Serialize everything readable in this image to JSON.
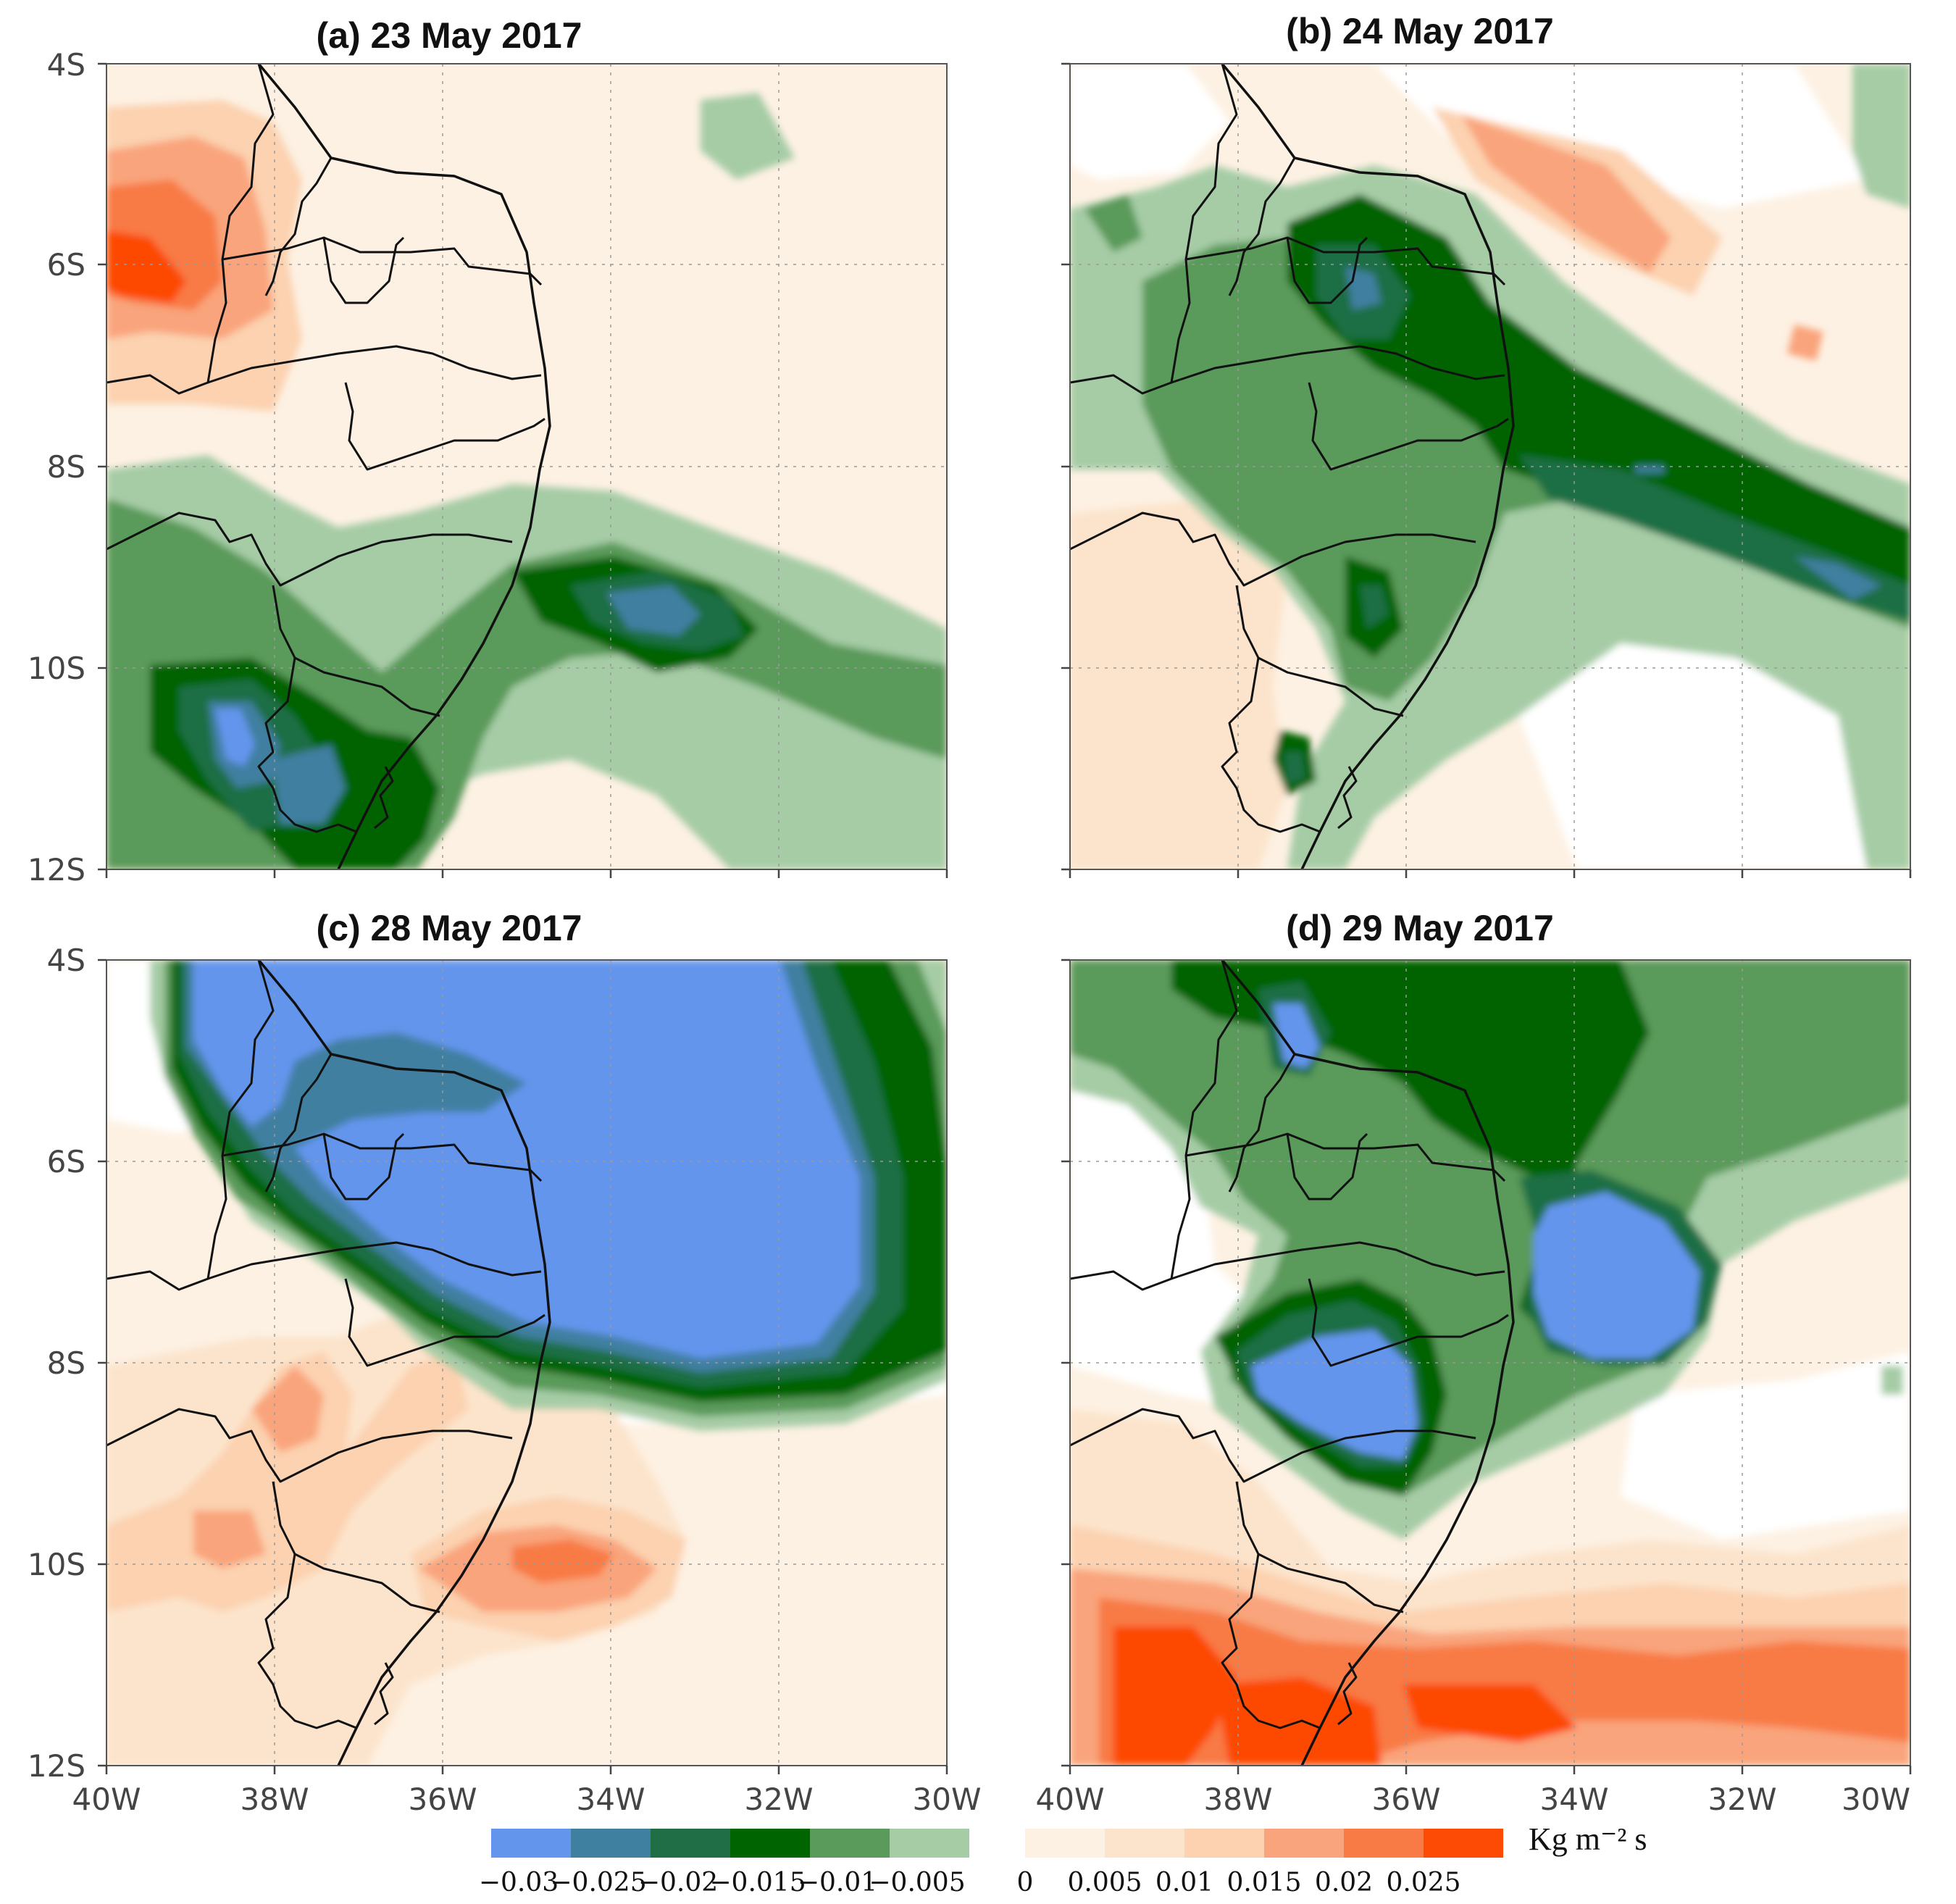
{
  "figure": {
    "panels": [
      {
        "title": "(a) 23 May 2017",
        "date": "23 May 2017"
      },
      {
        "title": "(b) 24 May 2017",
        "date": "24 May 2017"
      },
      {
        "title": "(c) 28 May 2017",
        "date": "28 May 2017"
      },
      {
        "title": "(d) 29 May 2017",
        "date": "29 May 2017"
      }
    ],
    "lat_ticks": [
      "4S",
      "6S",
      "8S",
      "10S",
      "12S"
    ],
    "lon_ticks": [
      "40W",
      "38W",
      "36W",
      "34W",
      "32W",
      "30W"
    ],
    "colorbar": {
      "unit": "Kg m⁻² s",
      "labels": [
        "−0.03",
        "−0.025",
        "−0.02",
        "−0.015",
        "−0.01",
        "−0.005",
        "0",
        "0.005",
        "0.01",
        "0.015",
        "0.02",
        "0.025"
      ],
      "colors": [
        "#6495ed",
        "#3f7fa0",
        "#1f6e45",
        "#006400",
        "#5a9a5a",
        "#a6cca6",
        "#fdf1e3",
        "#fce4cc",
        "#fcd2b0",
        "#f9a47c",
        "#f87a45",
        "#fd4a05"
      ]
    }
  },
  "chart_data": {
    "type": "heatmap",
    "variable": "Kg m⁻² s",
    "region": {
      "lon": [
        -40,
        -30
      ],
      "lat": [
        -12,
        -4
      ]
    },
    "levels": [
      -0.03,
      -0.025,
      -0.02,
      -0.015,
      -0.01,
      -0.005,
      0,
      0.005,
      0.01,
      0.015,
      0.02,
      0.025
    ],
    "panels": [
      {
        "date": "23 May 2017",
        "features": [
          {
            "lon": -39.5,
            "lat": -6.4,
            "value": 0.025
          },
          {
            "lon": -39.0,
            "lat": -6.0,
            "value": 0.02
          },
          {
            "lon": -38.5,
            "lat": -6.8,
            "value": 0.01
          },
          {
            "lon": -33.2,
            "lat": -9.3,
            "value": -0.02
          },
          {
            "lon": -33.5,
            "lat": -9.6,
            "value": -0.015
          },
          {
            "lon": -38.8,
            "lat": -10.9,
            "value": -0.03
          },
          {
            "lon": -37.5,
            "lat": -11.2,
            "value": -0.025
          },
          {
            "lon": -32.8,
            "lat": -5.0,
            "value": -0.005
          },
          {
            "lon": -31.0,
            "lat": -10.0,
            "value": -0.01
          }
        ]
      },
      {
        "date": "24 May 2017",
        "features": [
          {
            "lon": -35.5,
            "lat": -6.8,
            "value": -0.02
          },
          {
            "lon": -35.3,
            "lat": -7.4,
            "value": -0.015
          },
          {
            "lon": -32.0,
            "lat": -8.8,
            "value": -0.02
          },
          {
            "lon": -30.8,
            "lat": -9.7,
            "value": -0.02
          },
          {
            "lon": -35.8,
            "lat": -9.6,
            "value": -0.02
          },
          {
            "lon": -36.8,
            "lat": -11.2,
            "value": -0.02
          },
          {
            "lon": -32.0,
            "lat": -5.8,
            "value": 0.01
          },
          {
            "lon": -31.0,
            "lat": -7.1,
            "value": 0.015
          },
          {
            "lon": -30.2,
            "lat": -5.0,
            "value": -0.005
          }
        ]
      },
      {
        "date": "28 May 2017",
        "features": [
          {
            "lon": -33.0,
            "lat": -6.8,
            "value": -0.03
          },
          {
            "lon": -38.5,
            "lat": -4.8,
            "value": -0.03
          },
          {
            "lon": -35.8,
            "lat": -6.0,
            "value": -0.03
          },
          {
            "lon": -31.0,
            "lat": -5.5,
            "value": -0.015
          },
          {
            "lon": -33.8,
            "lat": -9.3,
            "value": 0.02
          },
          {
            "lon": -37.5,
            "lat": -8.5,
            "value": 0.015
          },
          {
            "lon": -39.5,
            "lat": -9.5,
            "value": 0.015
          }
        ]
      },
      {
        "date": "29 May 2017",
        "features": [
          {
            "lon": -32.8,
            "lat": -7.5,
            "value": -0.03
          },
          {
            "lon": -36.8,
            "lat": -8.7,
            "value": -0.03
          },
          {
            "lon": -37.8,
            "lat": -5.1,
            "value": -0.03
          },
          {
            "lon": -36.0,
            "lat": -5.5,
            "value": -0.015
          },
          {
            "lon": -38.7,
            "lat": -11.3,
            "value": 0.025
          },
          {
            "lon": -36.0,
            "lat": -11.8,
            "value": 0.025
          },
          {
            "lon": -33.0,
            "lat": -11.0,
            "value": 0.02
          },
          {
            "lon": -35.0,
            "lat": -10.3,
            "value": 0.01
          }
        ]
      }
    ]
  }
}
